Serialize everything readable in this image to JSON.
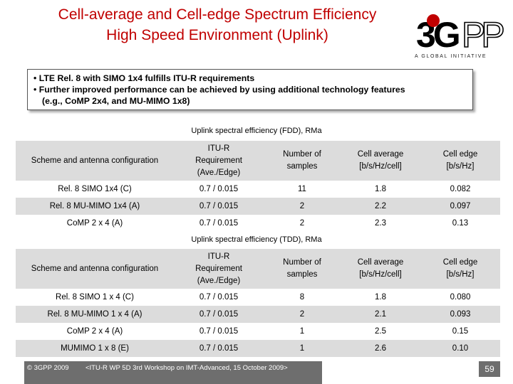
{
  "title": {
    "line1": "Cell-average and Cell-edge Spectrum Efficiency",
    "line2": "High Speed Environment (Uplink)"
  },
  "logo": {
    "text": "3GPP",
    "tagline": "A GLOBAL INITIATIVE"
  },
  "bullets": [
    "• LTE Rel. 8 with SIMO 1x4 fulfills ITU-R requirements",
    "• Further improved performance can be achieved by using additional technology features",
    "(e.g., CoMP 2x4, and MU-MIMO 1x8)"
  ],
  "tables": [
    {
      "caption": "Uplink spectral efficiency (FDD), RMa",
      "headers": {
        "scheme": "Scheme and antenna configuration",
        "req_1": "ITU-R",
        "req_2": "Requirement",
        "req_3": "(Ave./Edge)",
        "samples_1": "Number of",
        "samples_2": "samples",
        "avg_1": "Cell average",
        "avg_2": "[b/s/Hz/cell]",
        "edge_1": "Cell edge",
        "edge_2": "[b/s/Hz]"
      },
      "rows": [
        {
          "scheme": "Rel. 8 SIMO 1x4 (C)",
          "req": "0.7 / 0.015",
          "samples": "11",
          "avg": "1.8",
          "edge": "0.082"
        },
        {
          "scheme": "Rel. 8 MU-MIMO 1x4 (A)",
          "req": "0.7 / 0.015",
          "samples": "2",
          "avg": "2.2",
          "edge": "0.097"
        },
        {
          "scheme": "CoMP 2 x 4 (A)",
          "req": "0.7 / 0.015",
          "samples": "2",
          "avg": "2.3",
          "edge": "0.13"
        }
      ]
    },
    {
      "caption": "Uplink spectral efficiency (TDD), RMa",
      "headers": {
        "scheme": "Scheme and antenna configuration",
        "req_1": "ITU-R",
        "req_2": "Requirement",
        "req_3": "(Ave./Edge)",
        "samples_1": "Number of",
        "samples_2": "samples",
        "avg_1": "Cell average",
        "avg_2": "[b/s/Hz/cell]",
        "edge_1": "Cell edge",
        "edge_2": "[b/s/Hz]"
      },
      "rows": [
        {
          "scheme": "Rel. 8 SIMO 1 x 4 (C)",
          "req": "0.7 / 0.015",
          "samples": "8",
          "avg": "1.8",
          "edge": "0.080"
        },
        {
          "scheme": "Rel. 8 MU-MIMO 1 x 4 (A)",
          "req": "0.7 / 0.015",
          "samples": "2",
          "avg": "2.1",
          "edge": "0.093"
        },
        {
          "scheme": "CoMP 2 x 4 (A)",
          "req": "0.7 / 0.015",
          "samples": "1",
          "avg": "2.5",
          "edge": "0.15"
        },
        {
          "scheme": "MUMIMO 1 x 8 (E)",
          "req": "0.7 / 0.015",
          "samples": "1",
          "avg": "2.6",
          "edge": "0.10"
        }
      ]
    }
  ],
  "footer": {
    "copyright": "© 3GPP 2009",
    "event": "<ITU-R WP 5D 3rd Workshop on IMT-Advanced, 15 October 2009>",
    "page": "59"
  },
  "colors": {
    "title": "#c00000",
    "row_alt": "#dcdcdc",
    "footer_bg": "#6e6e6e"
  }
}
